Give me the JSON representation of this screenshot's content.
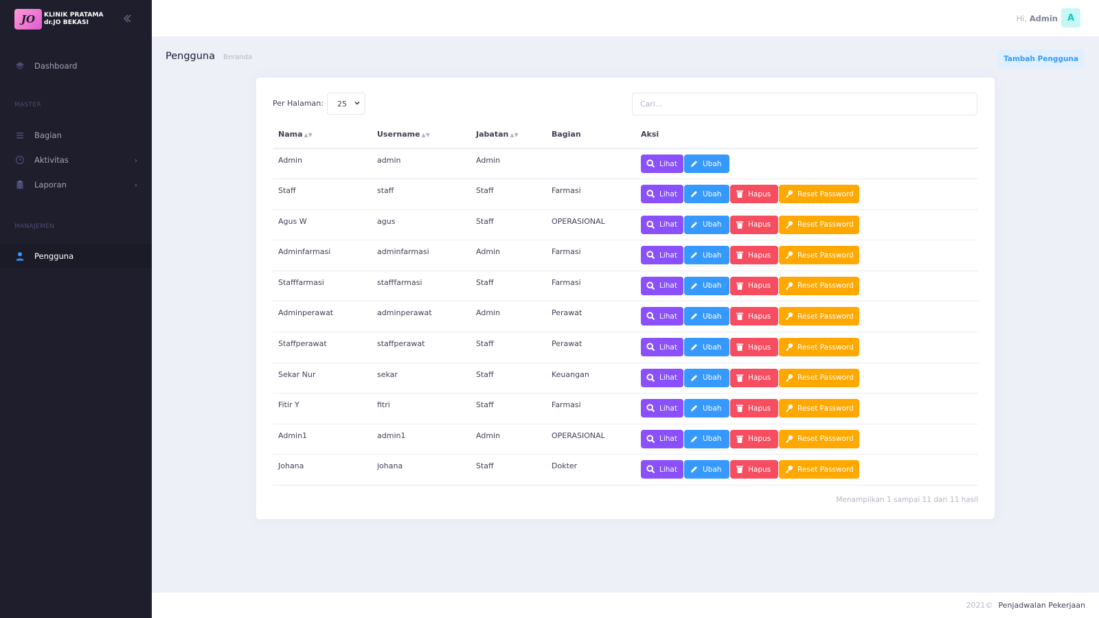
{
  "brand": {
    "logo_text": "JO",
    "line1": "KLINIK PRATAMA",
    "line2": "dr.JO BEKASI"
  },
  "sidebar": {
    "dashboard": "Dashboard",
    "section_master": "MASTER",
    "bagian": "Bagian",
    "aktivitas": "Aktivitas",
    "laporan": "Laporan",
    "section_manajemen": "MANAJEMEN",
    "pengguna": "Pengguna"
  },
  "header": {
    "greeting": "Hi,",
    "user": "Admin",
    "avatar": "A"
  },
  "subheader": {
    "title": "Pengguna",
    "breadcrumb": "Beranda",
    "add_button": "Tambah Pengguna"
  },
  "controls": {
    "per_page_label": "Per Halaman:",
    "per_page_value": "25",
    "search_placeholder": "Cari..."
  },
  "table": {
    "headers": {
      "nama": "Nama",
      "username": "Username",
      "jabatan": "Jabatan",
      "bagian": "Bagian",
      "aksi": "Aksi"
    },
    "actions": {
      "lihat": "Lihat",
      "ubah": "Ubah",
      "hapus": "Hapus",
      "reset": "Reset Password"
    },
    "rows": [
      {
        "nama": "Admin",
        "username": "admin",
        "jabatan": "Admin",
        "bagian": ""
      },
      {
        "nama": "Staff",
        "username": "staff",
        "jabatan": "Staff",
        "bagian": "Farmasi"
      },
      {
        "nama": "Agus W",
        "username": "agus",
        "jabatan": "Staff",
        "bagian": "OPERASIONAL"
      },
      {
        "nama": "Adminfarmasi",
        "username": "adminfarmasi",
        "jabatan": "Admin",
        "bagian": "Farmasi"
      },
      {
        "nama": "Stafffarmasi",
        "username": "stafffarmasi",
        "jabatan": "Staff",
        "bagian": "Farmasi"
      },
      {
        "nama": "Adminperawat",
        "username": "adminperawat",
        "jabatan": "Admin",
        "bagian": "Perawat"
      },
      {
        "nama": "Staffperawat",
        "username": "staffperawat",
        "jabatan": "Staff",
        "bagian": "Perawat"
      },
      {
        "nama": "Sekar Nur",
        "username": "sekar",
        "jabatan": "Staff",
        "bagian": "Keuangan"
      },
      {
        "nama": "Fitir Y",
        "username": "fitri",
        "jabatan": "Staff",
        "bagian": "Farmasi"
      },
      {
        "nama": "Admin1",
        "username": "admin1",
        "jabatan": "Admin",
        "bagian": "OPERASIONAL"
      },
      {
        "nama": "Johana",
        "username": "johana",
        "jabatan": "Staff",
        "bagian": "Dokter"
      }
    ],
    "info": "Menampilkan 1 sampai 11 dari 11 hasil"
  },
  "footer": {
    "year": "2021©",
    "app": "Penjadwalan Pekerjaan"
  }
}
